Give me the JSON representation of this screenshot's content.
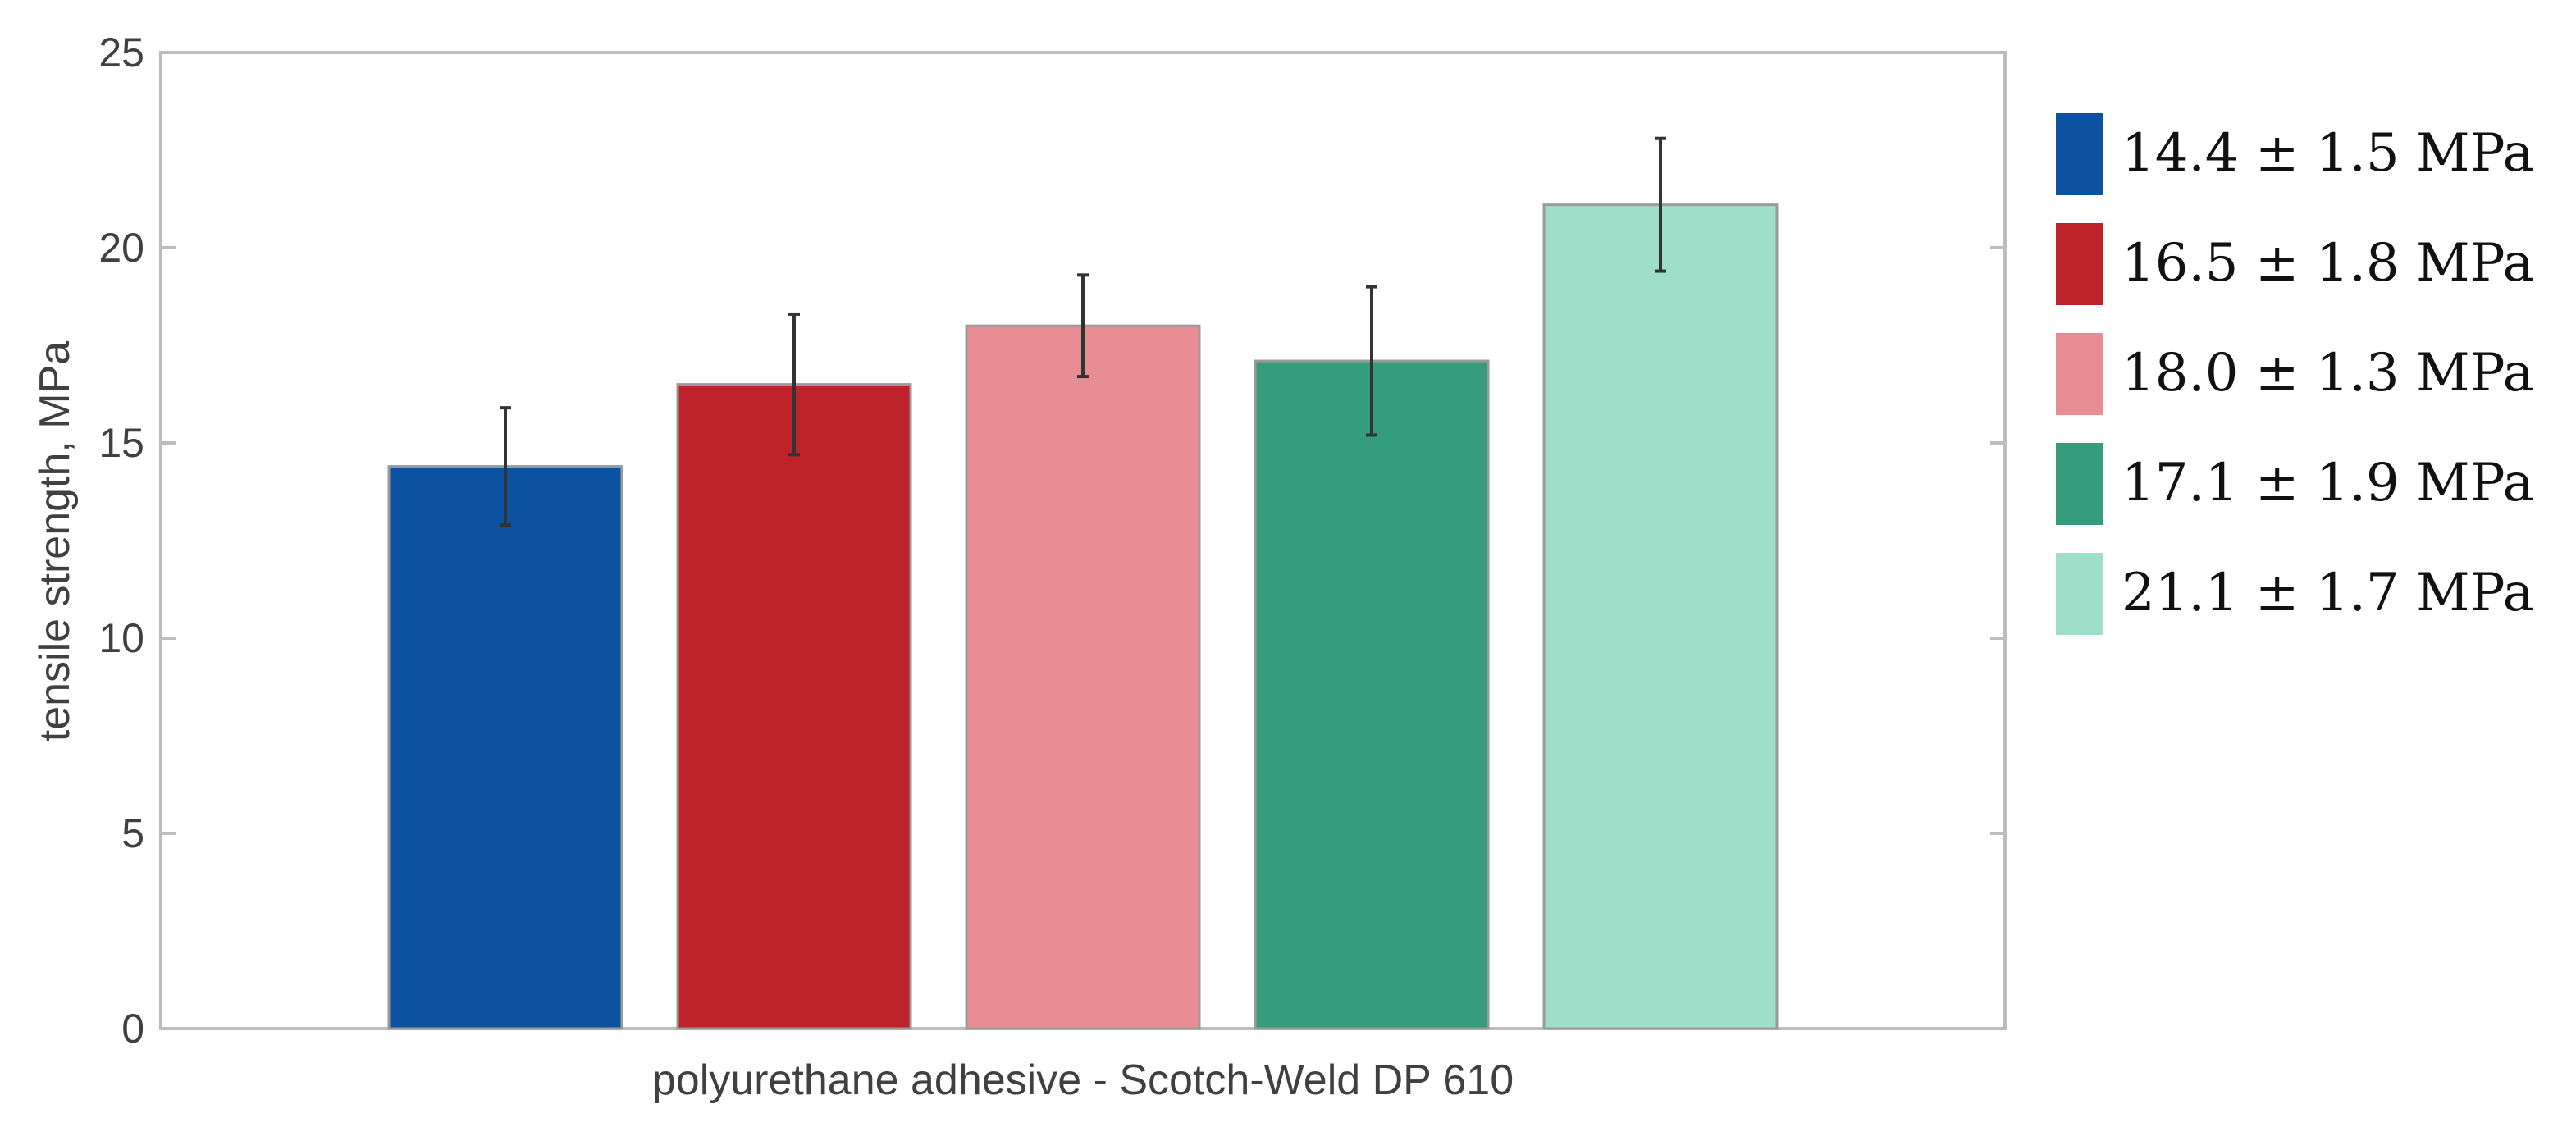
{
  "chart_data": {
    "type": "bar",
    "title": "",
    "xlabel": "polyurethane adhesive - Scotch-Weld DP 610",
    "ylabel": "tensile strength, MPa",
    "ylim": [
      0,
      25
    ],
    "yticks": [
      0,
      5,
      10,
      15,
      20,
      25
    ],
    "grid": false,
    "legend_position": "right",
    "series": [
      {
        "name": "14.4 ± 1.5 MPa",
        "value": 14.4,
        "error": 1.5,
        "color": "#0d52a0"
      },
      {
        "name": "16.5 ± 1.8 MPa",
        "value": 16.5,
        "error": 1.8,
        "color": "#be222b"
      },
      {
        "name": "18.0 ± 1.3 MPa",
        "value": 18.0,
        "error": 1.3,
        "color": "#e98d94"
      },
      {
        "name": "17.1 ± 1.9 MPa",
        "value": 17.1,
        "error": 1.9,
        "color": "#369d7c"
      },
      {
        "name": "21.1 ± 1.7 MPa",
        "value": 21.1,
        "error": 1.7,
        "color": "#9fdec9"
      }
    ]
  }
}
